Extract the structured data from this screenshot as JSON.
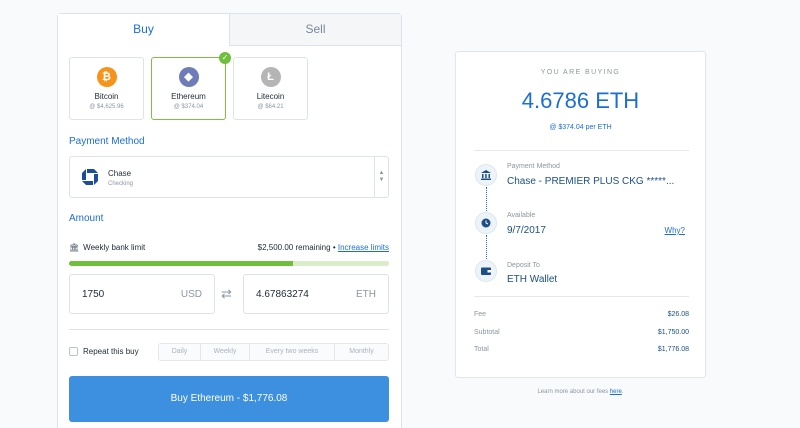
{
  "tabs": {
    "buy": "Buy",
    "sell": "Sell"
  },
  "coins": [
    {
      "name": "Bitcoin",
      "price": "@ $4,625.96",
      "symbol": "₿",
      "icon": "bitcoin-icon",
      "color": "#f7931a"
    },
    {
      "name": "Ethereum",
      "price": "@ $374.04",
      "symbol": "◆",
      "icon": "ethereum-icon",
      "color": "#6f7cba",
      "selected": true
    },
    {
      "name": "Litecoin",
      "price": "@ $64.21",
      "symbol": "Ł",
      "icon": "litecoin-icon",
      "color": "#b5b5b5"
    }
  ],
  "payment": {
    "label": "Payment Method",
    "name": "Chase",
    "sub": "Checking"
  },
  "amount": {
    "label": "Amount",
    "limit_label": "Weekly bank limit",
    "limit_remaining": "$2,500.00 remaining",
    "separator": "•",
    "increase_link": "Increase limits",
    "limit_used_fraction": 0.7,
    "usd_value": "1750",
    "usd_currency": "USD",
    "eth_value": "4.67863274",
    "eth_currency": "ETH"
  },
  "repeat": {
    "label": "Repeat this buy",
    "options": [
      "Daily",
      "Weekly",
      "Every two weeks",
      "Monthly"
    ]
  },
  "buy_button": "Buy Ethereum - $1,776.08",
  "summary": {
    "you_are_buying": "YOU ARE BUYING",
    "amount": "4.6786 ETH",
    "rate": "@ $374.04 per ETH",
    "payment_label": "Payment Method",
    "payment_value": "Chase - PREMIER PLUS CKG *****...",
    "available_label": "Available",
    "available_value": "9/7/2017",
    "why_link": "Why?",
    "deposit_label": "Deposit To",
    "deposit_value": "ETH Wallet",
    "fee_label": "Fee",
    "fee_value": "$26.08",
    "subtotal_label": "Subtotal",
    "subtotal_value": "$1,750.00",
    "total_label": "Total",
    "total_value": "$1,776.08"
  },
  "footer": {
    "text": "Learn more about our fees ",
    "link": "here",
    "end": "."
  },
  "colors": {
    "accent": "#1b6ed6",
    "button": "#3d8fe0",
    "success": "#6fbf3a"
  }
}
